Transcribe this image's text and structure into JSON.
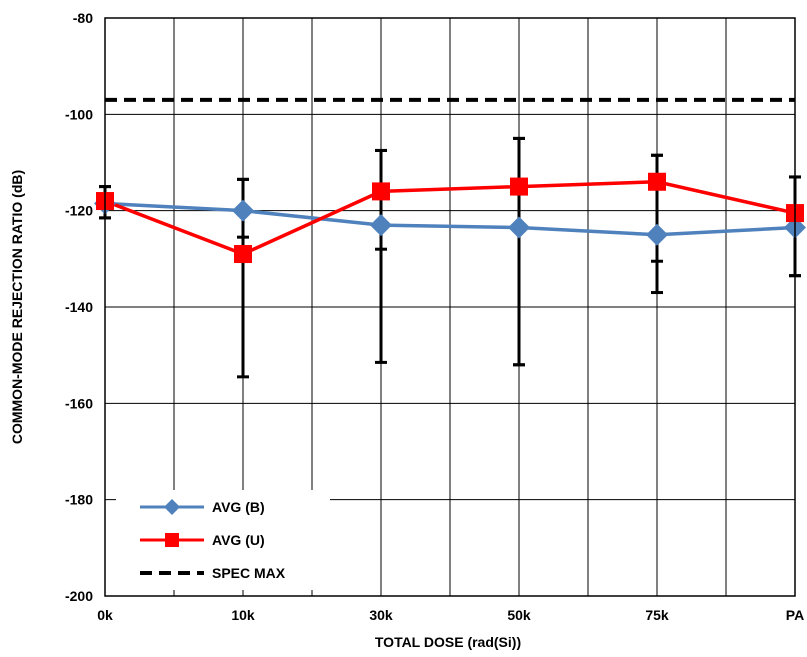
{
  "chart_data": {
    "type": "line",
    "categories": [
      "0k",
      "10k",
      "30k",
      "50k",
      "75k",
      "PA"
    ],
    "xlabel": "TOTAL DOSE (rad(Si))",
    "ylabel": "COMMON-MODE REJECTION RATIO (dB)",
    "ylim": [
      -200,
      -80
    ],
    "yticks": [
      -80,
      -100,
      -120,
      -140,
      -160,
      -180,
      -200
    ],
    "grid": true,
    "legend_position": "bottom-left",
    "series": [
      {
        "name": "AVG (B)",
        "color": "#4F81BD",
        "marker": "diamond",
        "values": [
          -118.5,
          -120,
          -123,
          -123.5,
          -125,
          -123.5
        ],
        "error_low": [
          -121.5,
          -125.5,
          -128,
          -152,
          -130.5,
          -133.5
        ],
        "error_high": [
          -115,
          -113.5,
          -107.5,
          -105,
          -108.5,
          -113
        ]
      },
      {
        "name": "AVG (U)",
        "color": "#FF0000",
        "marker": "square",
        "values": [
          -118,
          -129,
          -116,
          -115,
          -114,
          -120.5
        ],
        "error_low": [
          -121.5,
          -154.5,
          -151.5,
          -152,
          -137,
          -133.5
        ],
        "error_high": [
          -115,
          -113.5,
          -107.5,
          -105,
          -108.5,
          -113
        ]
      }
    ],
    "spec": {
      "name": "SPEC MAX",
      "value": -97,
      "color": "#000000",
      "style": "dashed"
    }
  }
}
